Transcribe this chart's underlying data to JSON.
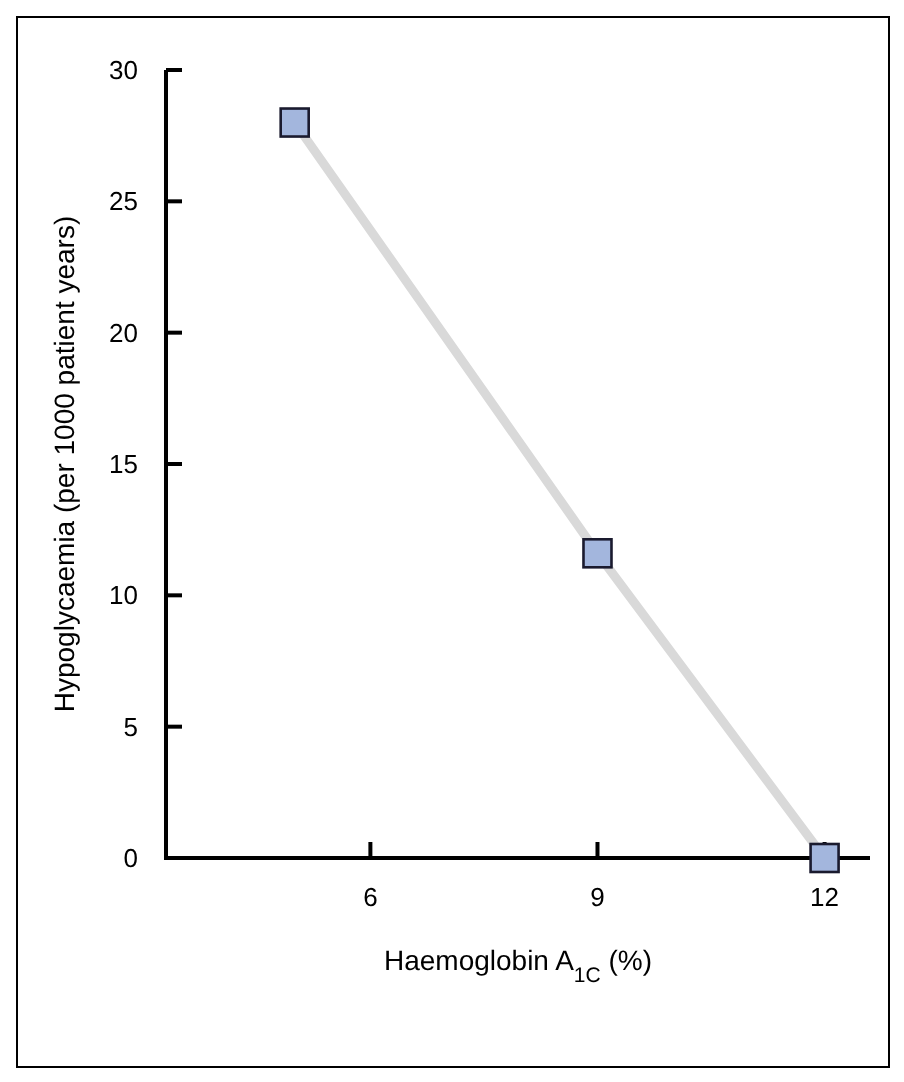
{
  "chart_data": {
    "type": "line",
    "xlabel": "Haemoglobin A$_{1C}$ (%)",
    "ylabel": "Hypoglycaemia (per 1000 patient years)",
    "x": [
      5,
      9,
      12
    ],
    "series": [
      {
        "color": "#a3b6dd",
        "values": [
          28,
          11.6,
          0
        ]
      }
    ],
    "xlim": [
      3.3,
      12.6
    ],
    "xticks": [
      6,
      9,
      12
    ],
    "ylim": [
      0,
      30
    ],
    "yticks": [
      0,
      5,
      10,
      15,
      20,
      25,
      30
    ],
    "grid": false,
    "marker": "square",
    "line_style": "solid"
  }
}
